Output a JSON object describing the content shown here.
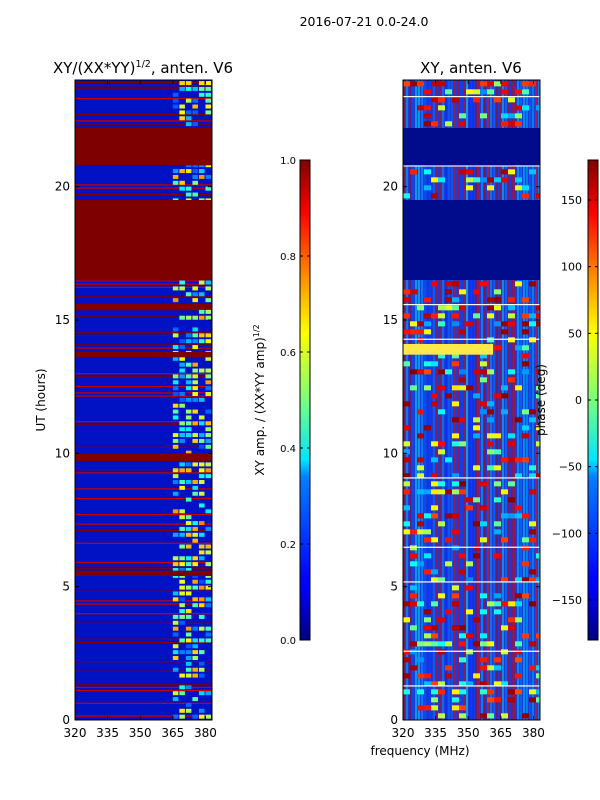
{
  "figure": {
    "suptitle": "2016-07-21 0.0-24.0",
    "xlabel": "frequency (MHz)"
  },
  "chart_data": [
    {
      "type": "heatmap",
      "title_main": "XY/(XX*YY)",
      "title_exp": "1/2",
      "title_tail": ", anten. V6",
      "ylabel": "UT (hours)",
      "xlim": [
        320,
        383
      ],
      "ylim": [
        0,
        24
      ],
      "xticks": [
        320,
        335,
        350,
        365,
        380
      ],
      "yticks": [
        0,
        5,
        10,
        15,
        20
      ],
      "colorbar": {
        "label_main": "XY amp. / (XX*YY amp)",
        "label_exp": "1/2",
        "range": [
          0.0,
          1.0
        ],
        "ticks": [
          "0.0",
          "0.2",
          "0.4",
          "0.6",
          "0.8",
          "1.0"
        ],
        "tick_values": [
          0.0,
          0.2,
          0.4,
          0.6,
          0.8,
          1.0
        ]
      },
      "saturated_bands_ut": [
        [
          16.5,
          19.5
        ],
        [
          20.8,
          22.2
        ],
        [
          9.7,
          10.0
        ],
        [
          5.4,
          5.6
        ],
        [
          15.4,
          15.6
        ],
        [
          13.6,
          13.8
        ]
      ],
      "bright_freq_range": [
        365,
        383
      ]
    },
    {
      "type": "heatmap",
      "title": "XY, anten. V6",
      "xlim": [
        320,
        383
      ],
      "ylim": [
        0,
        24
      ],
      "xticks": [
        320,
        335,
        350,
        365,
        380
      ],
      "yticks": [
        0,
        5,
        10,
        15,
        20
      ],
      "colorbar": {
        "label": "phase (deg)",
        "range": [
          -180,
          180
        ],
        "ticks": [
          "−150",
          "−100",
          "−50",
          "0",
          "50",
          "100",
          "150"
        ],
        "tick_values": [
          -150,
          -100,
          -50,
          0,
          50,
          100,
          150
        ]
      },
      "flat_bands_ut": [
        [
          16.5,
          19.5
        ],
        [
          20.8,
          22.2
        ]
      ],
      "bright_line_ut": [
        13.7,
        14.1
      ]
    }
  ]
}
